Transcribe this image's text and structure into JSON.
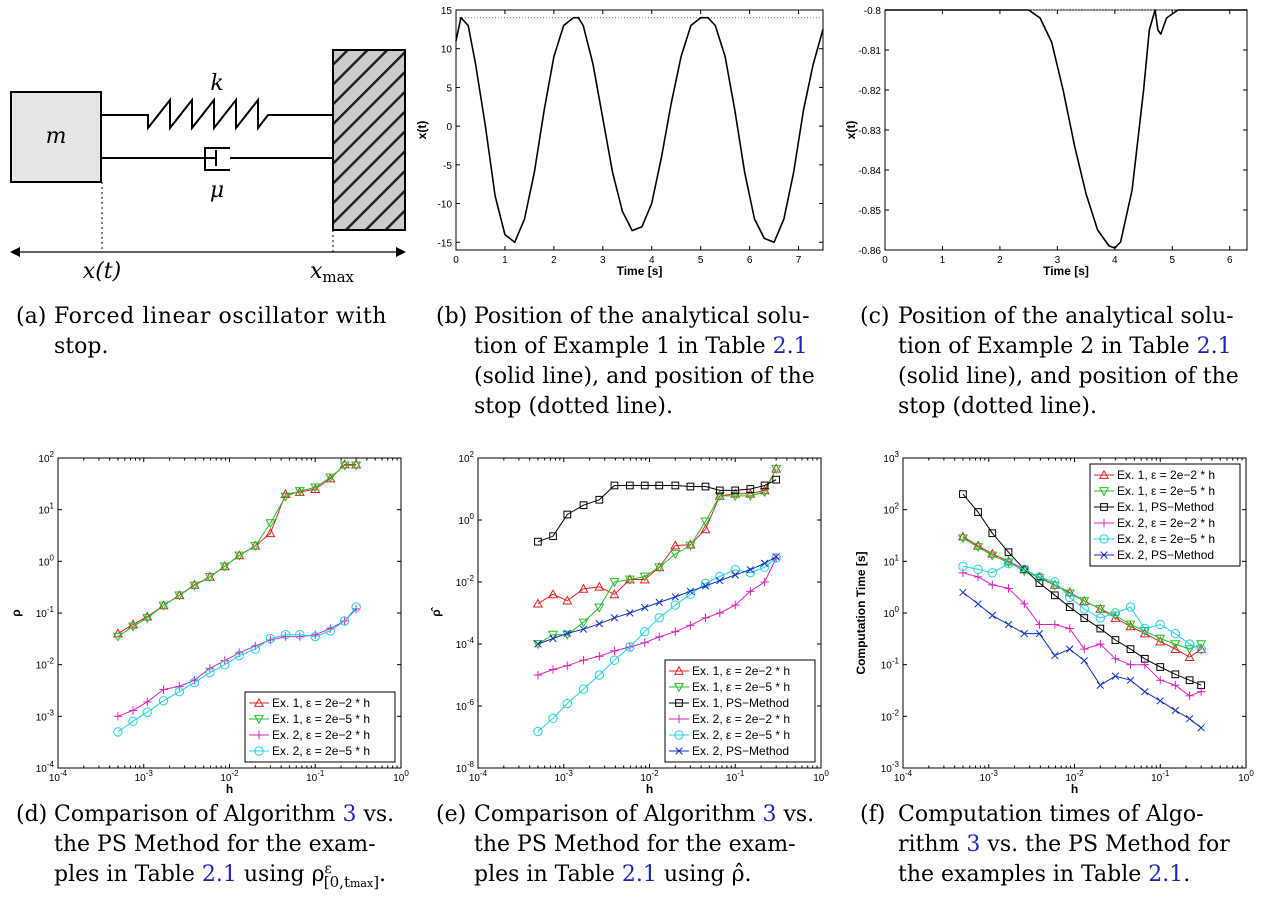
{
  "diagram": {
    "mass_label": "m",
    "spring_label": "k",
    "damper_label": "μ",
    "position_label": "x(t)",
    "stop_label": "x",
    "stop_sub": "max"
  },
  "captions": {
    "a": {
      "tag": "(a)",
      "l1": "Forced linear oscillator with",
      "l2": "stop."
    },
    "b": {
      "tag": "(b)",
      "l1": "Position of the analytical solu-",
      "l2a": "tion of Example 1 in Table ",
      "ref": "2.1",
      "l3": "(solid line), and position of the",
      "l4": "stop (dotted line)."
    },
    "c": {
      "tag": "(c)",
      "l1": "Position of the analytical solu-",
      "l2a": "tion of Example 2 in Table ",
      "ref": "2.1",
      "l3": "(solid line), and position of the",
      "l4": "stop (dotted line)."
    },
    "d": {
      "tag": "(d)",
      "l1a": "Comparison of Algorithm ",
      "alg": "3",
      "l1b": " vs.",
      "l2": "the PS Method for the exam-",
      "l3a": "ples in Table ",
      "ref": "2.1",
      "l3b": " using ρ",
      "sup": "ε",
      "sub": "[0,t",
      "subsub": "max",
      "subend": "]",
      "l3c": "."
    },
    "e": {
      "tag": "(e)",
      "l1a": "Comparison of Algorithm ",
      "alg": "3",
      "l1b": " vs.",
      "l2": "the PS Method for the exam-",
      "l3a": "ples in Table ",
      "ref": "2.1",
      "l3b": " using ρ̂."
    },
    "f": {
      "tag": "(f)",
      "l1": "Computation times of Algo-",
      "l2a": "rithm ",
      "alg": "3",
      "l2b": " vs. the PS Method for",
      "l3a": "the examples in Table ",
      "ref": "2.1",
      "l3b": "."
    }
  },
  "chart_data": [
    {
      "id": "b",
      "type": "line",
      "xlabel": "Time [s]",
      "ylabel": "x(t)",
      "xlim": [
        0,
        7.5
      ],
      "ylim": [
        -16,
        15
      ],
      "xticks": [
        "0",
        "1",
        "2",
        "3",
        "4",
        "5",
        "6",
        "7"
      ],
      "yticks": [
        "15",
        "10",
        "5",
        "0",
        "-5",
        "-10",
        "-15"
      ],
      "stop": 14,
      "series": [
        {
          "style": "solid",
          "x": [
            0,
            0.1,
            0.25,
            0.4,
            0.6,
            0.8,
            1.0,
            1.2,
            1.4,
            1.6,
            1.8,
            2.0,
            2.2,
            2.4,
            2.5,
            2.6,
            2.8,
            3.0,
            3.2,
            3.4,
            3.6,
            3.8,
            4.0,
            4.2,
            4.4,
            4.6,
            4.8,
            5.0,
            5.15,
            5.3,
            5.5,
            5.7,
            5.9,
            6.1,
            6.3,
            6.5,
            6.7,
            6.9,
            7.1,
            7.3,
            7.5
          ],
          "y": [
            11,
            14,
            13,
            8,
            0,
            -9,
            -14,
            -15,
            -12,
            -6,
            2,
            9,
            13,
            14,
            14,
            13,
            8,
            1,
            -6,
            -11,
            -13.5,
            -13,
            -10,
            -4,
            3,
            9,
            13,
            14,
            14,
            13,
            9,
            2,
            -6,
            -12,
            -14.5,
            -15,
            -12,
            -6,
            2,
            8,
            12.5
          ]
        }
      ]
    },
    {
      "id": "c",
      "type": "line",
      "xlabel": "Time [s]",
      "ylabel": "x(t)",
      "xlim": [
        0,
        6.3
      ],
      "ylim": [
        -0.86,
        -0.8
      ],
      "xticks": [
        "0",
        "1",
        "2",
        "3",
        "4",
        "5",
        "6"
      ],
      "yticks": [
        "-0.8",
        "-0.81",
        "-0.82",
        "-0.83",
        "-0.84",
        "-0.85",
        "-0.86"
      ],
      "stop": -0.8,
      "series": [
        {
          "style": "solid",
          "x": [
            0,
            2.5,
            2.7,
            2.9,
            3.1,
            3.3,
            3.5,
            3.7,
            3.9,
            4.0,
            4.1,
            4.3,
            4.5,
            4.6,
            4.7,
            4.75,
            4.8,
            4.9,
            5.0,
            5.1,
            6.3
          ],
          "y": [
            -0.8,
            -0.8,
            -0.802,
            -0.808,
            -0.82,
            -0.834,
            -0.846,
            -0.855,
            -0.859,
            -0.8595,
            -0.858,
            -0.845,
            -0.82,
            -0.805,
            -0.8,
            -0.805,
            -0.806,
            -0.802,
            -0.801,
            -0.8,
            -0.8
          ]
        }
      ]
    },
    {
      "id": "d",
      "type": "line",
      "xlabel": "h",
      "ylabel": "ρ",
      "xscale": "log",
      "yscale": "log",
      "xlim": [
        0.0001,
        1
      ],
      "ylim": [
        0.0001,
        100
      ],
      "xticks": [
        "10",
        "10",
        "10",
        "10",
        "10"
      ],
      "xtick_exp": [
        "-4",
        "-3",
        "-2",
        "-1",
        "0"
      ],
      "yticks": [
        "10",
        "10",
        "10",
        "10",
        "10",
        "10",
        "10"
      ],
      "ytick_exp": [
        "2",
        "1",
        "0",
        "-1",
        "-2",
        "-3",
        "-4"
      ],
      "legend": "bottom-right",
      "x": [
        0.0005,
        0.00075,
        0.0011,
        0.0017,
        0.0026,
        0.0039,
        0.0059,
        0.0088,
        0.013,
        0.02,
        0.03,
        0.045,
        0.066,
        0.1,
        0.15,
        0.22,
        0.3
      ],
      "series": [
        {
          "name": "Ex. 1, ε = 2e−2 * h",
          "color": "#e02020",
          "marker": "triangle-up",
          "values": [
            0.04,
            0.06,
            0.085,
            0.14,
            0.22,
            0.35,
            0.5,
            0.8,
            1.3,
            2.0,
            3.5,
            20,
            22,
            25,
            40,
            75,
            75
          ]
        },
        {
          "name": "Ex. 1, ε = 2e−5 * h",
          "color": "#20c020",
          "marker": "triangle-down",
          "values": [
            0.035,
            0.055,
            0.08,
            0.14,
            0.22,
            0.34,
            0.5,
            0.8,
            1.3,
            2.0,
            5.5,
            18,
            23,
            27,
            42,
            72,
            72
          ]
        },
        {
          "name": "Ex. 2, ε = 2e−2 * h",
          "color": "#e020c0",
          "marker": "plus",
          "values": [
            0.001,
            0.0013,
            0.0019,
            0.0033,
            0.0038,
            0.005,
            0.0085,
            0.012,
            0.017,
            0.023,
            0.03,
            0.035,
            0.035,
            0.038,
            0.05,
            0.07,
            0.12
          ]
        },
        {
          "name": "Ex. 2, ε = 2e−5 * h",
          "color": "#20d0e0",
          "marker": "circle",
          "values": [
            0.0005,
            0.0008,
            0.0012,
            0.002,
            0.003,
            0.0045,
            0.007,
            0.01,
            0.015,
            0.02,
            0.032,
            0.038,
            0.038,
            0.035,
            0.045,
            0.07,
            0.13
          ]
        }
      ]
    },
    {
      "id": "e",
      "type": "line",
      "xlabel": "h",
      "ylabel": "ρ̂",
      "xscale": "log",
      "yscale": "log",
      "xlim": [
        0.0001,
        1
      ],
      "ylim": [
        1e-08,
        100
      ],
      "xticks": [
        "10",
        "10",
        "10",
        "10",
        "10"
      ],
      "xtick_exp": [
        "-4",
        "-3",
        "-2",
        "-1",
        "0"
      ],
      "yticks": [
        "10",
        "10",
        "10",
        "10",
        "10",
        "10"
      ],
      "ytick_exp": [
        "2",
        "0",
        "-2",
        "-4",
        "-6",
        "-8"
      ],
      "legend": "bottom-right",
      "x": [
        0.0005,
        0.00075,
        0.0011,
        0.0017,
        0.0026,
        0.0039,
        0.0059,
        0.0088,
        0.013,
        0.02,
        0.03,
        0.045,
        0.066,
        0.1,
        0.15,
        0.22,
        0.3
      ],
      "series": [
        {
          "name": "Ex. 1, ε = 2e−2 * h",
          "color": "#e02020",
          "marker": "triangle-up",
          "values": [
            0.002,
            0.004,
            0.0025,
            0.006,
            0.007,
            0.004,
            0.012,
            0.012,
            0.03,
            0.15,
            0.16,
            0.5,
            6,
            7,
            7,
            9,
            45
          ]
        },
        {
          "name": "Ex. 1, ε = 2e−5 * h",
          "color": "#20c020",
          "marker": "triangle-down",
          "values": [
            0.0001,
            0.0002,
            0.0002,
            0.0005,
            0.0015,
            0.01,
            0.012,
            0.015,
            0.03,
            0.08,
            0.15,
            0.9,
            6,
            6,
            6,
            8,
            45
          ]
        },
        {
          "name": "Ex. 1, PS−Method",
          "color": "#000000",
          "marker": "square",
          "values": [
            0.2,
            0.3,
            1.5,
            3,
            4.5,
            13,
            13,
            13,
            13,
            13,
            12,
            12,
            9,
            9,
            10,
            13,
            20
          ]
        },
        {
          "name": "Ex. 2, ε = 2e−2 * h",
          "color": "#e020c0",
          "marker": "plus",
          "values": [
            1e-05,
            1.5e-05,
            2e-05,
            3e-05,
            4e-05,
            6e-05,
            8e-05,
            0.00011,
            0.00017,
            0.00025,
            0.0004,
            0.0007,
            0.001,
            0.0018,
            0.005,
            0.01,
            0.06
          ]
        },
        {
          "name": "Ex. 2, ε = 2e−5 * h",
          "color": "#20d0e0",
          "marker": "circle",
          "values": [
            1.5e-07,
            4e-07,
            1.2e-06,
            3.5e-06,
            1e-05,
            3e-05,
            8e-05,
            0.00025,
            0.0007,
            0.0018,
            0.004,
            0.009,
            0.015,
            0.025,
            0.02,
            0.03,
            0.06
          ]
        },
        {
          "name": "Ex. 2, PS−Method",
          "color": "#1030c0",
          "marker": "x",
          "values": [
            0.0001,
            0.00015,
            0.00022,
            0.0003,
            0.00045,
            0.0007,
            0.001,
            0.0015,
            0.0022,
            0.0033,
            0.005,
            0.0075,
            0.011,
            0.017,
            0.025,
            0.04,
            0.065
          ]
        }
      ]
    },
    {
      "id": "f",
      "type": "line",
      "xlabel": "h",
      "ylabel": "Computation Time [s]",
      "xscale": "log",
      "yscale": "log",
      "xlim": [
        0.0001,
        1
      ],
      "ylim": [
        0.001,
        1000
      ],
      "xticks": [
        "10",
        "10",
        "10",
        "10",
        "10"
      ],
      "xtick_exp": [
        "-4",
        "-3",
        "-2",
        "-1",
        "0"
      ],
      "yticks": [
        "10",
        "10",
        "10",
        "10",
        "10",
        "10",
        "10"
      ],
      "ytick_exp": [
        "3",
        "2",
        "1",
        "0",
        "-1",
        "-2",
        "-3"
      ],
      "legend": "top-right",
      "x": [
        0.0005,
        0.00075,
        0.0011,
        0.0017,
        0.0026,
        0.0039,
        0.0059,
        0.0088,
        0.013,
        0.02,
        0.03,
        0.045,
        0.066,
        0.1,
        0.15,
        0.22,
        0.3
      ],
      "series": [
        {
          "name": "Ex. 1, ε = 2e−2 * h",
          "color": "#e02020",
          "marker": "triangle-up",
          "values": [
            30,
            20,
            14,
            10,
            7,
            5,
            3.5,
            2.5,
            1.7,
            1.2,
            0.8,
            0.55,
            0.4,
            0.28,
            0.2,
            0.14,
            0.2
          ]
        },
        {
          "name": "Ex. 1, ε = 2e−5 * h",
          "color": "#20c020",
          "marker": "triangle-down",
          "values": [
            28,
            19,
            13,
            9.5,
            6.5,
            4.8,
            3.4,
            2.4,
            1.7,
            1.2,
            0.9,
            0.6,
            0.45,
            0.32,
            0.25,
            0.2,
            0.25
          ]
        },
        {
          "name": "Ex. 1, PS−Method",
          "color": "#000000",
          "marker": "square",
          "values": [
            200,
            90,
            35,
            15,
            7,
            3.8,
            2.2,
            1.3,
            0.8,
            0.5,
            0.3,
            0.2,
            0.13,
            0.09,
            0.065,
            0.05,
            0.04
          ]
        },
        {
          "name": "Ex. 2, ε = 2e−2 * h",
          "color": "#e020c0",
          "marker": "plus",
          "values": [
            6,
            5,
            3.5,
            3,
            1.5,
            0.6,
            0.6,
            0.5,
            0.2,
            0.25,
            0.13,
            0.1,
            0.1,
            0.05,
            0.04,
            0.025,
            0.03
          ]
        },
        {
          "name": "Ex. 2, ε = 2e−5 * h",
          "color": "#20d0e0",
          "marker": "circle",
          "values": [
            8,
            7,
            6,
            9,
            7,
            5,
            4,
            2,
            1.2,
            0.8,
            1,
            1.3,
            0.5,
            0.6,
            0.4,
            0.25,
            0.2
          ]
        },
        {
          "name": "Ex. 2, PS−Method",
          "color": "#1030c0",
          "marker": "x",
          "values": [
            2.5,
            1.5,
            0.9,
            0.6,
            0.4,
            0.4,
            0.15,
            0.2,
            0.12,
            0.04,
            0.06,
            0.05,
            0.03,
            0.02,
            0.013,
            0.009,
            0.006
          ]
        }
      ]
    }
  ]
}
